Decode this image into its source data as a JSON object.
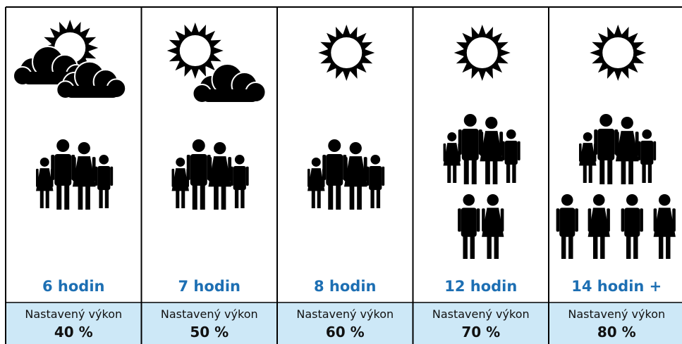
{
  "columns": [
    {
      "hours": "6 hodin",
      "label": "Nastavený výkon",
      "power": "40 %"
    },
    {
      "hours": "7 hodin",
      "label": "Nastavený výkon",
      "power": "50 %"
    },
    {
      "hours": "8 hodin",
      "label": "Nastavený výkon",
      "power": "60 %"
    },
    {
      "hours": "12 hodin",
      "label": "Nastavený výkon",
      "power": "70 %"
    },
    {
      "hours": "14 hodin +",
      "label": "Nastavený výkon",
      "power": "80 %"
    }
  ]
}
